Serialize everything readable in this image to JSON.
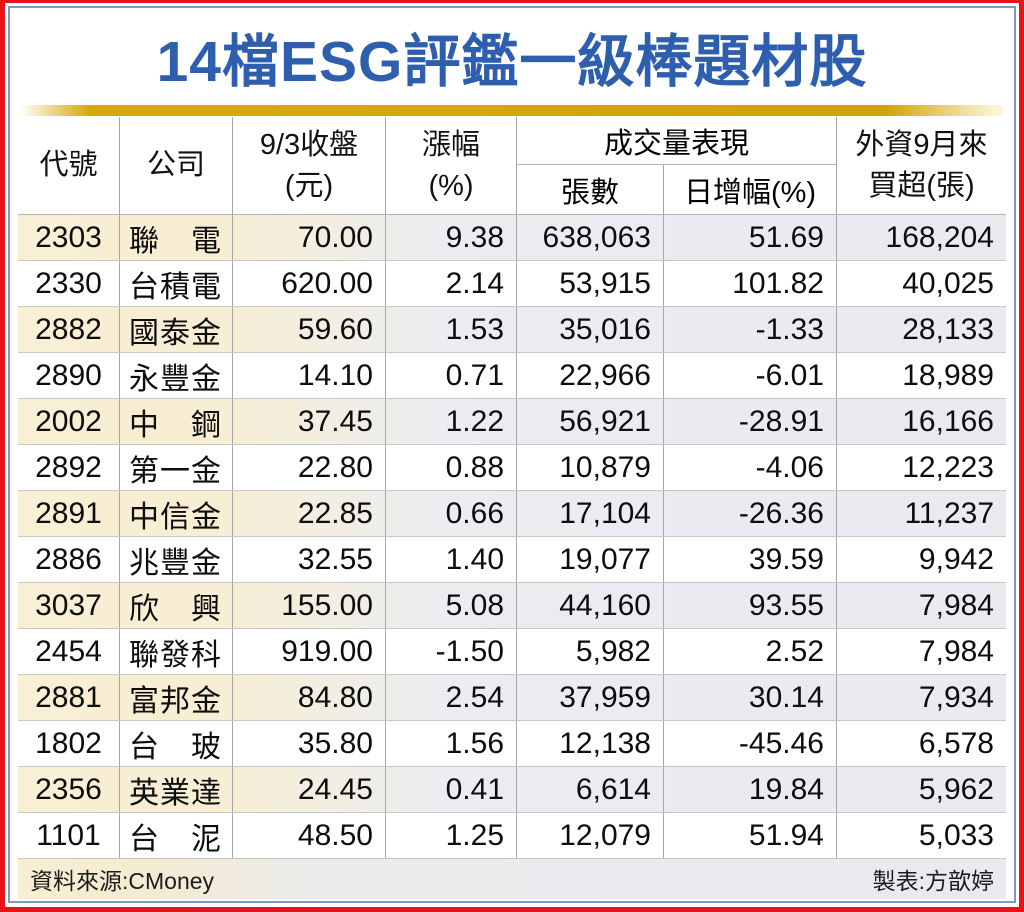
{
  "title": "14檔ESG評鑑一級棒題材股",
  "colors": {
    "title_blue": "#2e5fae",
    "gold_bar": "#d9a90c",
    "stripe_beige": "#f9efd5",
    "stripe_blue_gray": "#e9ebf1",
    "outer_border_red": "#ea1219",
    "inner_border_blue": "#8496ba"
  },
  "table": {
    "headers": {
      "code": "代號",
      "company": "公司",
      "close_line1": "9/3收盤",
      "close_line2": "(元)",
      "change_line1": "漲幅",
      "change_line2": "(%)",
      "volume_group": "成交量表現",
      "volume": "張數",
      "volume_change": "日增幅(%)",
      "foreign_line1": "外資9月來",
      "foreign_line2": "買超(張)"
    },
    "rows": [
      {
        "code": "2303",
        "company": "聯電",
        "close": "70.00",
        "change": "9.38",
        "volume": "638,063",
        "volume_change": "51.69",
        "foreign_buy": "168,204"
      },
      {
        "code": "2330",
        "company": "台積電",
        "close": "620.00",
        "change": "2.14",
        "volume": "53,915",
        "volume_change": "101.82",
        "foreign_buy": "40,025"
      },
      {
        "code": "2882",
        "company": "國泰金",
        "close": "59.60",
        "change": "1.53",
        "volume": "35,016",
        "volume_change": "-1.33",
        "foreign_buy": "28,133"
      },
      {
        "code": "2890",
        "company": "永豐金",
        "close": "14.10",
        "change": "0.71",
        "volume": "22,966",
        "volume_change": "-6.01",
        "foreign_buy": "18,989"
      },
      {
        "code": "2002",
        "company": "中鋼",
        "close": "37.45",
        "change": "1.22",
        "volume": "56,921",
        "volume_change": "-28.91",
        "foreign_buy": "16,166"
      },
      {
        "code": "2892",
        "company": "第一金",
        "close": "22.80",
        "change": "0.88",
        "volume": "10,879",
        "volume_change": "-4.06",
        "foreign_buy": "12,223"
      },
      {
        "code": "2891",
        "company": "中信金",
        "close": "22.85",
        "change": "0.66",
        "volume": "17,104",
        "volume_change": "-26.36",
        "foreign_buy": "11,237"
      },
      {
        "code": "2886",
        "company": "兆豐金",
        "close": "32.55",
        "change": "1.40",
        "volume": "19,077",
        "volume_change": "39.59",
        "foreign_buy": "9,942"
      },
      {
        "code": "3037",
        "company": "欣興",
        "close": "155.00",
        "change": "5.08",
        "volume": "44,160",
        "volume_change": "93.55",
        "foreign_buy": "7,984"
      },
      {
        "code": "2454",
        "company": "聯發科",
        "close": "919.00",
        "change": "-1.50",
        "volume": "5,982",
        "volume_change": "2.52",
        "foreign_buy": "7,984"
      },
      {
        "code": "2881",
        "company": "富邦金",
        "close": "84.80",
        "change": "2.54",
        "volume": "37,959",
        "volume_change": "30.14",
        "foreign_buy": "7,934"
      },
      {
        "code": "1802",
        "company": "台玻",
        "close": "35.80",
        "change": "1.56",
        "volume": "12,138",
        "volume_change": "-45.46",
        "foreign_buy": "6,578"
      },
      {
        "code": "2356",
        "company": "英業達",
        "close": "24.45",
        "change": "0.41",
        "volume": "6,614",
        "volume_change": "19.84",
        "foreign_buy": "5,962"
      },
      {
        "code": "1101",
        "company": "台泥",
        "close": "48.50",
        "change": "1.25",
        "volume": "12,079",
        "volume_change": "51.94",
        "foreign_buy": "5,033"
      }
    ]
  },
  "footer": {
    "source": "資料來源:CMoney",
    "credit": "製表:方歆婷"
  },
  "chart_data": {
    "type": "table",
    "title": "14檔ESG評鑑一級棒題材股",
    "columns": [
      "代號",
      "公司",
      "9/3收盤(元)",
      "漲幅(%)",
      "成交量表現-張數",
      "成交量表現-日增幅(%)",
      "外資9月來買超(張)"
    ],
    "rows": [
      [
        "2303",
        "聯電",
        70.0,
        9.38,
        638063,
        51.69,
        168204
      ],
      [
        "2330",
        "台積電",
        620.0,
        2.14,
        53915,
        101.82,
        40025
      ],
      [
        "2882",
        "國泰金",
        59.6,
        1.53,
        35016,
        -1.33,
        28133
      ],
      [
        "2890",
        "永豐金",
        14.1,
        0.71,
        22966,
        -6.01,
        18989
      ],
      [
        "2002",
        "中鋼",
        37.45,
        1.22,
        56921,
        -28.91,
        16166
      ],
      [
        "2892",
        "第一金",
        22.8,
        0.88,
        10879,
        -4.06,
        12223
      ],
      [
        "2891",
        "中信金",
        22.85,
        0.66,
        17104,
        -26.36,
        11237
      ],
      [
        "2886",
        "兆豐金",
        32.55,
        1.4,
        19077,
        39.59,
        9942
      ],
      [
        "3037",
        "欣興",
        155.0,
        5.08,
        44160,
        93.55,
        7984
      ],
      [
        "2454",
        "聯發科",
        919.0,
        -1.5,
        5982,
        2.52,
        7984
      ],
      [
        "2881",
        "富邦金",
        84.8,
        2.54,
        37959,
        30.14,
        7934
      ],
      [
        "1802",
        "台玻",
        35.8,
        1.56,
        12138,
        -45.46,
        6578
      ],
      [
        "2356",
        "英業達",
        24.45,
        0.41,
        6614,
        19.84,
        5962
      ],
      [
        "1101",
        "台泥",
        48.5,
        1.25,
        12079,
        51.94,
        5033
      ]
    ],
    "source": "CMoney",
    "credit": "方歆婷"
  }
}
